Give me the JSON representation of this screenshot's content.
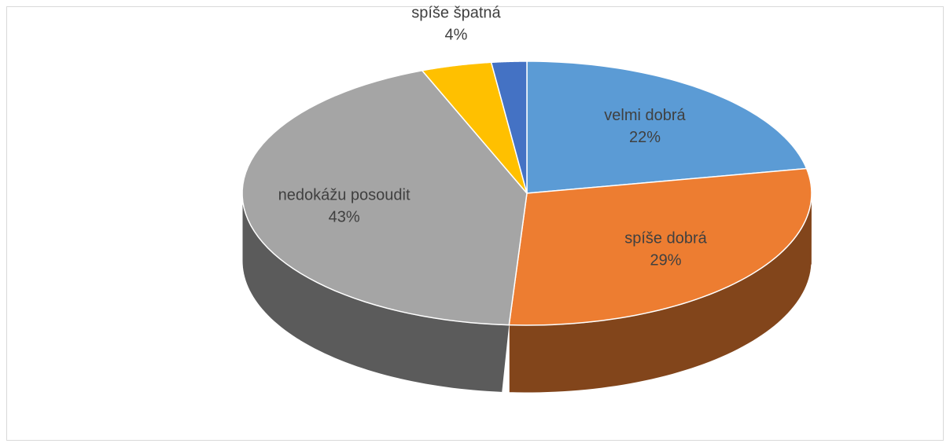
{
  "chart_data": {
    "type": "pie3d",
    "categories": [
      "velmi dobrá",
      "spíše dobrá",
      "nedokážu posoudit",
      "spíše špatná",
      null
    ],
    "values": [
      22,
      29,
      43,
      4,
      2
    ],
    "value_labels": [
      "22%",
      "29%",
      "43%",
      "4%",
      null
    ],
    "colors": [
      "#5b9bd5",
      "#ed7d31",
      "#a5a5a5",
      "#ffc000",
      "#4472c4"
    ]
  }
}
